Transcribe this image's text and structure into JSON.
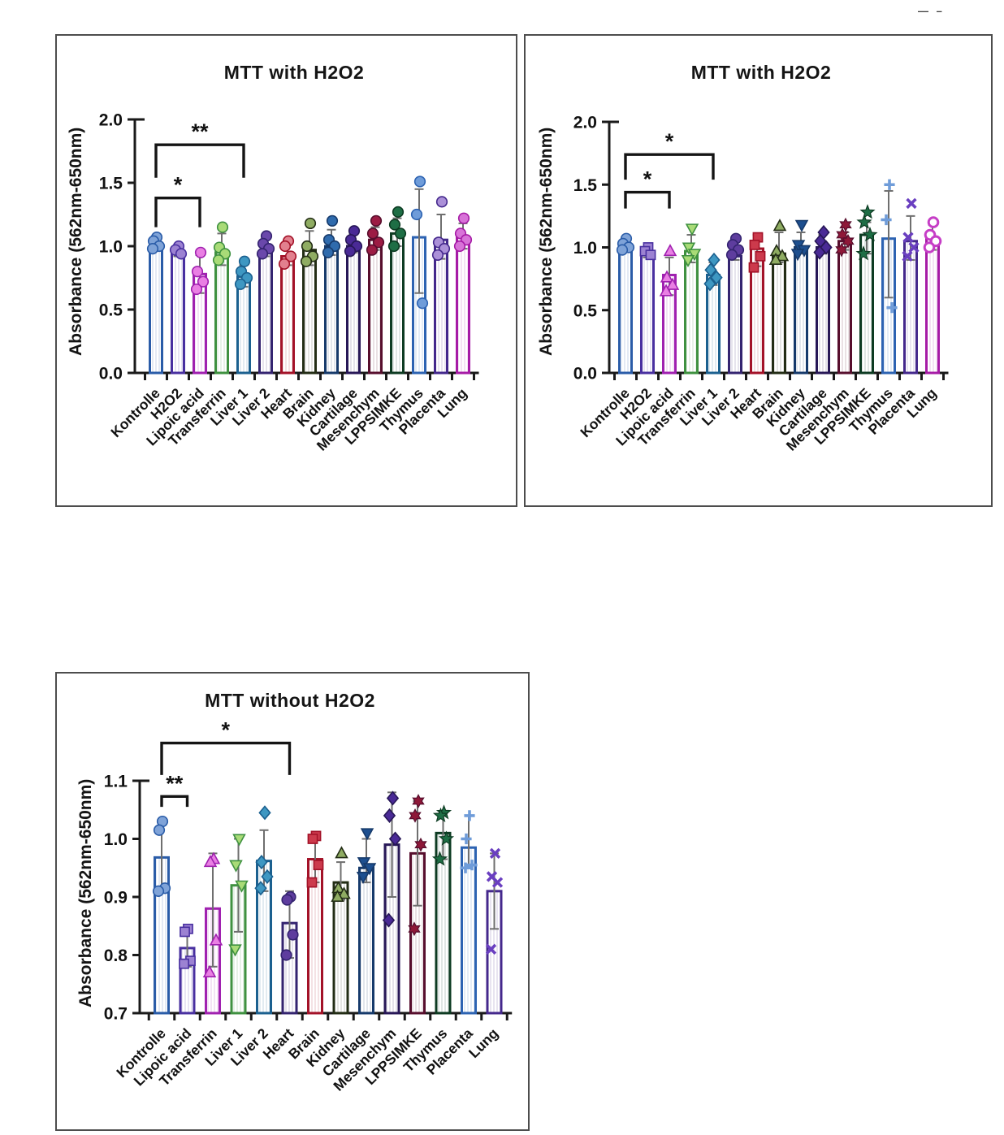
{
  "page": {
    "background": "#ffffff",
    "corner_marks": "— –"
  },
  "chart_data": [
    {
      "type": "bar",
      "title": "MTT with H2O2",
      "ylabel": "Absorbance (562nm-650nm)",
      "ylim": [
        0.0,
        2.0
      ],
      "yticks": [
        0.0,
        0.5,
        1.0,
        1.5,
        2.0
      ],
      "ytick_labels": [
        "0.0",
        "0.5",
        "1.0",
        "1.5",
        "2.0"
      ],
      "grid": false,
      "legend": "none",
      "significance": [
        {
          "from": 0,
          "to": 2,
          "label": "*",
          "y": 1.38,
          "drop": 0.23
        },
        {
          "from": 0,
          "to": 4,
          "label": "**",
          "y": 1.8,
          "drop": 0.26
        }
      ],
      "series": [
        {
          "category": "Kontrolle",
          "shape": "circle",
          "border": "#2a5ca8",
          "fill": "#7fa3d8",
          "value": 1.0,
          "err": [
            0.97,
            1.07
          ],
          "points": [
            1.07,
            1.04,
            1.0,
            0.98
          ]
        },
        {
          "category": "H2O2",
          "shape": "circle",
          "border": "#4930a0",
          "fill": "#9c82d2",
          "value": 0.95,
          "err": [
            0.92,
            1.0
          ],
          "points": [
            1.0,
            0.97,
            0.94
          ]
        },
        {
          "category": "Lipoic acid",
          "shape": "circle",
          "border": "#a021b0",
          "fill": "#e97fe3",
          "value": 0.78,
          "err": [
            0.63,
            0.93
          ],
          "points": [
            0.95,
            0.8,
            0.72,
            0.66
          ]
        },
        {
          "category": "Transferrin",
          "shape": "circle",
          "border": "#3f9140",
          "fill": "#a9db77",
          "value": 0.95,
          "err": [
            0.85,
            1.1
          ],
          "points": [
            1.15,
            0.99,
            0.94,
            0.89
          ]
        },
        {
          "category": "Liver 1",
          "shape": "circle",
          "border": "#1b608f",
          "fill": "#3e97c2",
          "value": 0.76,
          "err": [
            0.68,
            0.85
          ],
          "points": [
            0.88,
            0.8,
            0.75,
            0.7
          ]
        },
        {
          "category": "Liver 2",
          "shape": "circle",
          "border": "#342470",
          "fill": "#6a48ab",
          "value": 0.95,
          "err": [
            0.92,
            1.05
          ],
          "points": [
            1.08,
            1.02,
            0.98,
            0.94
          ]
        },
        {
          "category": "Heart",
          "shape": "circle",
          "border": "#a31228",
          "fill": "#e2808e",
          "value": 0.92,
          "err": [
            0.85,
            1.02
          ],
          "points": [
            1.04,
            1.0,
            0.92,
            0.86
          ]
        },
        {
          "category": "Brain",
          "shape": "circle",
          "border": "#232d15",
          "fill": "#8fac62",
          "value": 0.97,
          "err": [
            0.85,
            1.12
          ],
          "points": [
            1.18,
            1.0,
            0.92,
            0.88
          ]
        },
        {
          "category": "Kidney",
          "shape": "circle",
          "border": "#163a6b",
          "fill": "#2f6bad",
          "value": 1.0,
          "err": [
            0.93,
            1.13
          ],
          "points": [
            1.2,
            1.05,
            1.0,
            0.95
          ]
        },
        {
          "category": "Cartilage",
          "shape": "circle",
          "border": "#271757",
          "fill": "#4a2a96",
          "value": 1.0,
          "err": [
            0.95,
            1.1
          ],
          "points": [
            1.12,
            1.05,
            1.0,
            0.96
          ]
        },
        {
          "category": "Mesenchym",
          "shape": "circle",
          "border": "#570e2d",
          "fill": "#9c1c44",
          "value": 1.05,
          "err": [
            0.97,
            1.15
          ],
          "points": [
            1.2,
            1.1,
            1.03,
            0.97
          ]
        },
        {
          "category": "LPPSIMKE",
          "shape": "circle",
          "border": "#0d3b22",
          "fill": "#1e6e45",
          "value": 1.1,
          "err": [
            1.0,
            1.22
          ],
          "points": [
            1.27,
            1.17,
            1.1,
            1.0
          ]
        },
        {
          "category": "Thymus",
          "shape": "circle",
          "border": "#2d63b2",
          "fill": "#6f9cd9",
          "value": 1.07,
          "err": [
            0.63,
            1.45
          ],
          "points": [
            1.51,
            1.25,
            0.55
          ]
        },
        {
          "category": "Placenta",
          "shape": "circle",
          "border": "#44288c",
          "fill": "#ab90d8",
          "value": 1.05,
          "err": [
            0.9,
            1.25
          ],
          "points": [
            1.35,
            1.03,
            0.98,
            0.93
          ]
        },
        {
          "category": "Lung",
          "shape": "circle",
          "border": "#a61ba6",
          "fill": "#d873d8",
          "value": 1.07,
          "err": [
            0.98,
            1.18
          ],
          "points": [
            1.22,
            1.1,
            1.05,
            1.0
          ]
        }
      ]
    },
    {
      "type": "bar",
      "title": "MTT with H2O2",
      "ylabel": "Absorbance (562nm-650nm)",
      "ylim": [
        0.0,
        2.0
      ],
      "yticks": [
        0.0,
        0.5,
        1.0,
        1.5,
        2.0
      ],
      "ytick_labels": [
        "0.0",
        "0.5",
        "1.0",
        "1.5",
        "2.0"
      ],
      "grid": false,
      "legend": "none",
      "significance": [
        {
          "from": 0,
          "to": 2,
          "label": "*",
          "y": 1.44,
          "drop": 0.13
        },
        {
          "from": 0,
          "to": 4,
          "label": "*",
          "y": 1.74,
          "drop": 0.2
        }
      ],
      "series": [
        {
          "category": "Kontrolle",
          "shape": "circle",
          "border": "#2a5ca8",
          "fill": "#7fa3d8",
          "value": 1.0,
          "err": [
            0.97,
            1.07
          ],
          "points": [
            1.07,
            1.03,
            1.0,
            0.98
          ]
        },
        {
          "category": "H2O2",
          "shape": "square",
          "border": "#4930a0",
          "fill": "#9c82d2",
          "value": 0.95,
          "err": [
            0.92,
            1.0
          ],
          "points": [
            1.0,
            0.97,
            0.94
          ]
        },
        {
          "category": "Lipoic acid",
          "shape": "triangle",
          "border": "#a021b0",
          "fill": "#e97fe3",
          "value": 0.78,
          "err": [
            0.62,
            0.92
          ],
          "points": [
            0.97,
            0.76,
            0.7,
            0.65
          ]
        },
        {
          "category": "Transferrin",
          "shape": "triangle-down",
          "border": "#3f9140",
          "fill": "#a9db77",
          "value": 0.97,
          "err": [
            0.88,
            1.1
          ],
          "points": [
            1.15,
            1.0,
            0.95,
            0.9
          ]
        },
        {
          "category": "Liver 1",
          "shape": "diamond",
          "border": "#1b608f",
          "fill": "#3e97c2",
          "value": 0.78,
          "err": [
            0.7,
            0.88
          ],
          "points": [
            0.9,
            0.82,
            0.76,
            0.71
          ]
        },
        {
          "category": "Liver 2",
          "shape": "circle",
          "border": "#342470",
          "fill": "#5e3d9e",
          "value": 0.93,
          "err": [
            0.9,
            1.05
          ],
          "points": [
            1.07,
            1.02,
            0.98,
            0.94
          ]
        },
        {
          "category": "Heart",
          "shape": "square",
          "border": "#a31228",
          "fill": "#cc3a4c",
          "value": 0.99,
          "err": [
            0.85,
            1.1
          ],
          "points": [
            1.08,
            1.02,
            0.93,
            0.84
          ]
        },
        {
          "category": "Brain",
          "shape": "triangle",
          "border": "#232d15",
          "fill": "#8fac62",
          "value": 0.95,
          "err": [
            0.88,
            1.12
          ],
          "points": [
            1.17,
            0.97,
            0.93,
            0.9
          ]
        },
        {
          "category": "Kidney",
          "shape": "triangle-down",
          "border": "#163a6b",
          "fill": "#1d4f8f",
          "value": 1.0,
          "err": [
            0.95,
            1.12
          ],
          "points": [
            1.18,
            1.02,
            0.98,
            0.95
          ]
        },
        {
          "category": "Cartilage",
          "shape": "diamond",
          "border": "#271757",
          "fill": "#4a2a96",
          "value": 1.0,
          "err": [
            0.95,
            1.1
          ],
          "points": [
            1.12,
            1.05,
            1.0,
            0.96
          ]
        },
        {
          "category": "Mesenchym",
          "shape": "hexagram",
          "border": "#570e2d",
          "fill": "#8e1838",
          "value": 1.05,
          "err": [
            0.98,
            1.12
          ],
          "points": [
            1.18,
            1.1,
            1.05,
            0.98
          ]
        },
        {
          "category": "LPPSIMKE",
          "shape": "star",
          "border": "#0d3b22",
          "fill": "#1e6e45",
          "value": 1.1,
          "err": [
            0.95,
            1.2
          ],
          "points": [
            1.28,
            1.2,
            1.1,
            0.95
          ]
        },
        {
          "category": "Thymus",
          "shape": "plus",
          "border": "#2d63b2",
          "fill": "#6f9cd9",
          "value": 1.07,
          "err": [
            0.6,
            1.45
          ],
          "points": [
            1.5,
            1.22,
            0.52
          ]
        },
        {
          "category": "Placenta",
          "shape": "x",
          "border": "#44288c",
          "fill": "#6a3fc0",
          "value": 1.05,
          "err": [
            0.9,
            1.25
          ],
          "points": [
            1.35,
            1.08,
            1.0,
            0.93
          ]
        },
        {
          "category": "Lung",
          "shape": "circle-open",
          "border": "#a61ba6",
          "fill": "#c63ec6",
          "value": 1.07,
          "err": [
            0.98,
            1.18
          ],
          "points": [
            1.2,
            1.1,
            1.05,
            1.0
          ]
        }
      ]
    },
    {
      "type": "bar",
      "title": "MTT without H2O2",
      "ylabel": "Absorbance (562nm-650nm)",
      "ylim": [
        0.7,
        1.1
      ],
      "yticks": [
        0.7,
        0.8,
        0.9,
        1.0,
        1.1
      ],
      "ytick_labels": [
        "0.7",
        "0.8",
        "0.9",
        "1.0",
        "1.1"
      ],
      "grid": false,
      "legend": "none",
      "significance": [
        {
          "from": 0,
          "to": 1,
          "label": "**",
          "y": 1.073,
          "drop": 0.018
        },
        {
          "from": 0,
          "to": 5,
          "label": "*",
          "y": 1.165,
          "drop": 0.055
        }
      ],
      "series": [
        {
          "category": "Kontrolle",
          "shape": "circle",
          "border": "#2a5ca8",
          "fill": "#7fa3d8",
          "value": 0.968,
          "err": [
            0.91,
            1.03
          ],
          "points": [
            1.03,
            1.015,
            0.915,
            0.91
          ]
        },
        {
          "category": "Lipoic acid",
          "shape": "square",
          "border": "#4930a0",
          "fill": "#9c82d2",
          "value": 0.812,
          "err": [
            0.78,
            0.845
          ],
          "points": [
            0.845,
            0.84,
            0.79,
            0.785
          ]
        },
        {
          "category": "Transferrin",
          "shape": "triangle",
          "border": "#a021b0",
          "fill": "#e97fe3",
          "value": 0.88,
          "err": [
            0.78,
            0.975
          ],
          "points": [
            0.965,
            0.96,
            0.825,
            0.77
          ]
        },
        {
          "category": "Liver 1",
          "shape": "triangle-down",
          "border": "#3f9140",
          "fill": "#a9db77",
          "value": 0.92,
          "err": [
            0.84,
            1.0
          ],
          "points": [
            1.0,
            0.955,
            0.92,
            0.81
          ]
        },
        {
          "category": "Liver 2",
          "shape": "diamond",
          "border": "#1b608f",
          "fill": "#3e97c2",
          "value": 0.962,
          "err": [
            0.91,
            1.015
          ],
          "points": [
            1.045,
            0.96,
            0.935,
            0.915
          ]
        },
        {
          "category": "Heart",
          "shape": "circle",
          "border": "#342470",
          "fill": "#5e3d9e",
          "value": 0.855,
          "err": [
            0.795,
            0.91
          ],
          "points": [
            0.9,
            0.895,
            0.835,
            0.8
          ]
        },
        {
          "category": "Brain",
          "shape": "square",
          "border": "#a31228",
          "fill": "#cc3a4c",
          "value": 0.965,
          "err": [
            0.925,
            1.0
          ],
          "points": [
            1.005,
            1.0,
            0.955,
            0.925
          ]
        },
        {
          "category": "Kidney",
          "shape": "triangle",
          "border": "#232d15",
          "fill": "#8fac62",
          "value": 0.925,
          "err": [
            0.895,
            0.96
          ],
          "points": [
            0.975,
            0.915,
            0.905,
            0.9
          ]
        },
        {
          "category": "Cartilage",
          "shape": "triangle-down",
          "border": "#163a6b",
          "fill": "#1d4f8f",
          "value": 0.95,
          "err": [
            0.925,
            1.0
          ],
          "points": [
            1.01,
            0.96,
            0.95,
            0.935
          ]
        },
        {
          "category": "Mesenchym",
          "shape": "diamond",
          "border": "#271757",
          "fill": "#4a2a96",
          "value": 0.99,
          "err": [
            0.9,
            1.08
          ],
          "points": [
            1.07,
            1.04,
            1.0,
            0.86
          ]
        },
        {
          "category": "LPPSIMKE",
          "shape": "hexagram",
          "border": "#570e2d",
          "fill": "#8e1838",
          "value": 0.975,
          "err": [
            0.885,
            1.065
          ],
          "points": [
            1.065,
            1.04,
            0.99,
            0.845
          ]
        },
        {
          "category": "Thymus",
          "shape": "star",
          "border": "#0d3b22",
          "fill": "#1e6e45",
          "value": 1.01,
          "err": [
            0.965,
            1.045
          ],
          "points": [
            1.045,
            1.04,
            1.0,
            0.965
          ]
        },
        {
          "category": "Placenta",
          "shape": "plus",
          "border": "#2d63b2",
          "fill": "#6f9cd9",
          "value": 0.985,
          "err": [
            0.95,
            1.04
          ],
          "points": [
            1.04,
            1.0,
            0.955,
            0.95
          ]
        },
        {
          "category": "Lung",
          "shape": "x",
          "border": "#44288c",
          "fill": "#6a3fc0",
          "value": 0.91,
          "err": [
            0.845,
            0.975
          ],
          "points": [
            0.975,
            0.935,
            0.925,
            0.81
          ]
        }
      ]
    }
  ]
}
